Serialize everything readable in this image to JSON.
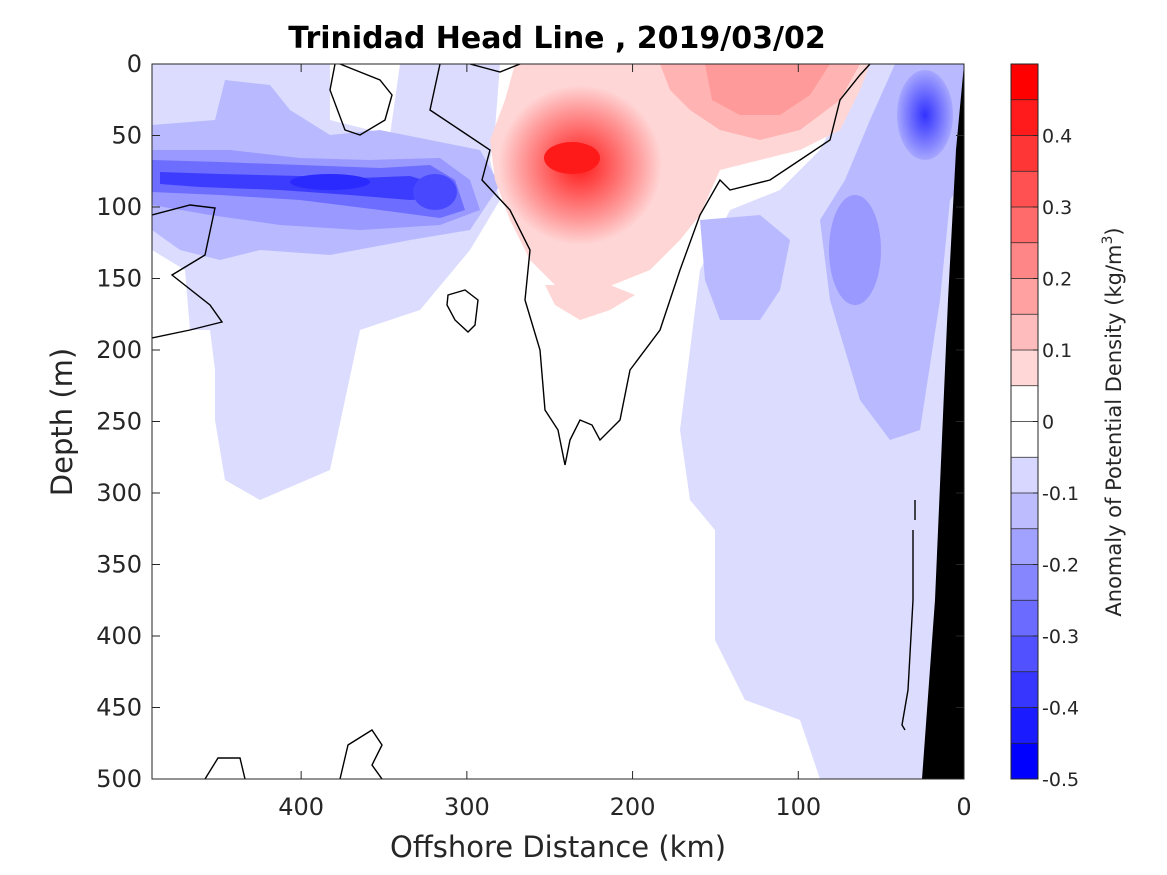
{
  "chart_data": {
    "type": "heatmap",
    "title": "Trinidad Head Line , 2019/03/02",
    "xlabel": "Offshore Distance (km)",
    "ylabel": "Depth (m)",
    "xlim": [
      490,
      0
    ],
    "ylim": [
      0,
      500
    ],
    "x_reversed": true,
    "y_reversed": true,
    "x_ticks": [
      400,
      300,
      200,
      100,
      0
    ],
    "y_ticks": [
      0,
      50,
      100,
      150,
      200,
      250,
      300,
      350,
      400,
      450,
      500
    ],
    "colorbar": {
      "label": "Anomaly of Potential Density (kg/m",
      "label_superscript": "3",
      "label_close": ")",
      "range": [
        -0.5,
        0.5
      ],
      "step": 0.05,
      "tick_values": [
        0.4,
        0.3,
        0.2,
        0.1,
        0,
        -0.1,
        -0.2,
        -0.3,
        -0.4,
        -0.5
      ],
      "tick_labels": [
        "0.4",
        "0.3",
        "0.2",
        "0.1",
        "0",
        "-0.1",
        "-0.2",
        "-0.3",
        "-0.4",
        "-0.5"
      ],
      "colormap": "blue-white-red",
      "colors": {
        "negative_max": "#0000ff",
        "zero": "#ffffff",
        "positive_max": "#ff0000"
      }
    },
    "features": [
      {
        "name": "surface cold anomaly band",
        "x_range": [
          490,
          290
        ],
        "depth_range": [
          60,
          110
        ],
        "min_value": -0.35,
        "color": "#3b3bff"
      },
      {
        "name": "offshore weak negative anomaly",
        "x_range": [
          490,
          270
        ],
        "depth_range": [
          0,
          300
        ],
        "value": -0.1
      },
      {
        "name": "warm anomaly core",
        "x_center": 235,
        "depth_center": 65,
        "max_value": 0.45,
        "color": "#ff1a1a"
      },
      {
        "name": "near-surface warm anomaly",
        "x_range": [
          200,
          80
        ],
        "depth_range": [
          0,
          60
        ],
        "value": 0.2
      },
      {
        "name": "nearshore negative anomaly",
        "x_range": [
          110,
          20
        ],
        "depth_range": [
          0,
          500
        ],
        "value": -0.1
      },
      {
        "name": "nearshore cold core",
        "x_center": 30,
        "depth_center": 40,
        "min_value": -0.3
      }
    ],
    "shelf_color": "#000000",
    "shelf_profile": [
      [
        0,
        0
      ],
      [
        12,
        90
      ],
      [
        20,
        300
      ],
      [
        26,
        500
      ]
    ],
    "zero_contour_color": "#000000"
  }
}
